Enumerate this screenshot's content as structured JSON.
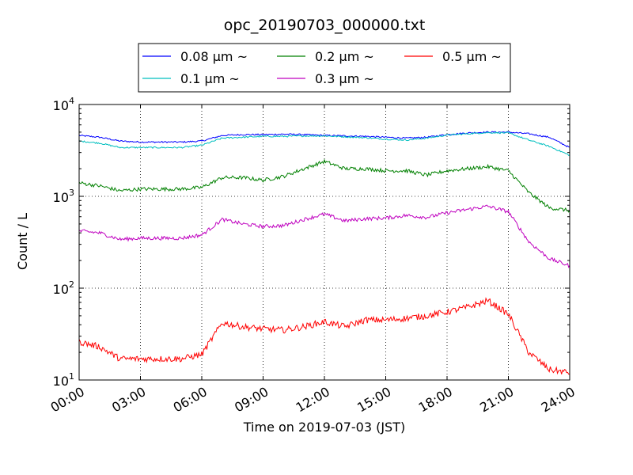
{
  "chart_data": {
    "type": "line",
    "title": "opc_20190703_000000.txt",
    "xlabel": "Time on 2019-07-03 (JST)",
    "ylabel": "Count / L",
    "yscale": "log",
    "ylim": [
      10,
      10000
    ],
    "xlim": [
      0,
      24
    ],
    "x_ticks": [
      {
        "value": 0,
        "label": "00:00"
      },
      {
        "value": 3,
        "label": "03:00"
      },
      {
        "value": 6,
        "label": "06:00"
      },
      {
        "value": 9,
        "label": "09:00"
      },
      {
        "value": 12,
        "label": "12:00"
      },
      {
        "value": 15,
        "label": "15:00"
      },
      {
        "value": 18,
        "label": "18:00"
      },
      {
        "value": 21,
        "label": "21:00"
      },
      {
        "value": 24,
        "label": "24:00"
      }
    ],
    "y_ticks": [
      {
        "value": 10,
        "base": "10",
        "exp": "1"
      },
      {
        "value": 100,
        "base": "10",
        "exp": "2"
      },
      {
        "value": 1000,
        "base": "10",
        "exp": "3"
      },
      {
        "value": 10000,
        "base": "10",
        "exp": "4"
      }
    ],
    "grid": true,
    "legend_position": "top-center",
    "series": [
      {
        "name": "0.08 μm ~",
        "color": "#0000ff",
        "x": [
          0,
          1,
          2,
          3,
          4,
          5,
          6,
          7,
          8,
          9,
          10,
          11,
          12,
          13,
          14,
          15,
          16,
          17,
          18,
          19,
          20,
          21,
          22,
          23,
          24
        ],
        "y": [
          4600,
          4400,
          4000,
          3900,
          3900,
          3900,
          4000,
          4600,
          4700,
          4700,
          4750,
          4700,
          4600,
          4550,
          4500,
          4400,
          4300,
          4400,
          4700,
          4900,
          5000,
          5000,
          4800,
          4400,
          3400
        ]
      },
      {
        "name": "0.1 μm ~",
        "color": "#00bfbf",
        "x": [
          0,
          1,
          2,
          3,
          4,
          5,
          6,
          7,
          8,
          9,
          10,
          11,
          12,
          13,
          14,
          15,
          16,
          17,
          18,
          19,
          20,
          21,
          22,
          23,
          24
        ],
        "y": [
          4000,
          3800,
          3400,
          3400,
          3400,
          3400,
          3600,
          4300,
          4400,
          4500,
          4500,
          4550,
          4550,
          4450,
          4350,
          4200,
          4100,
          4300,
          4650,
          4800,
          4950,
          4900,
          4100,
          3500,
          2800
        ]
      },
      {
        "name": "0.2 μm ~",
        "color": "#008000",
        "x": [
          0,
          1,
          2,
          3,
          4,
          5,
          6,
          7,
          8,
          9,
          10,
          11,
          12,
          13,
          14,
          15,
          16,
          17,
          18,
          19,
          20,
          21,
          22,
          23,
          24
        ],
        "y": [
          1400,
          1300,
          1150,
          1200,
          1200,
          1200,
          1250,
          1600,
          1600,
          1500,
          1650,
          2000,
          2400,
          2000,
          2000,
          1900,
          1900,
          1700,
          1900,
          2000,
          2100,
          1900,
          1100,
          750,
          700
        ]
      },
      {
        "name": "0.3 μm ~",
        "color": "#bf00bf",
        "x": [
          0,
          1,
          2,
          3,
          4,
          5,
          6,
          7,
          8,
          9,
          10,
          11,
          12,
          13,
          14,
          15,
          16,
          17,
          18,
          19,
          20,
          21,
          22,
          23,
          24
        ],
        "y": [
          420,
          400,
          340,
          350,
          350,
          350,
          380,
          560,
          500,
          470,
          480,
          560,
          640,
          540,
          570,
          580,
          620,
          590,
          660,
          720,
          780,
          680,
          320,
          210,
          175
        ]
      },
      {
        "name": "0.5 μm ~",
        "color": "#ff0000",
        "x": [
          0,
          1,
          2,
          3,
          4,
          5,
          6,
          7,
          8,
          9,
          10,
          11,
          12,
          13,
          14,
          15,
          16,
          17,
          18,
          19,
          20,
          21,
          22,
          23,
          24
        ],
        "y": [
          26,
          23,
          17,
          17,
          17,
          17,
          19,
          42,
          38,
          36,
          35,
          38,
          43,
          38,
          45,
          45,
          47,
          50,
          55,
          62,
          73,
          52,
          20,
          13,
          12
        ]
      }
    ]
  }
}
